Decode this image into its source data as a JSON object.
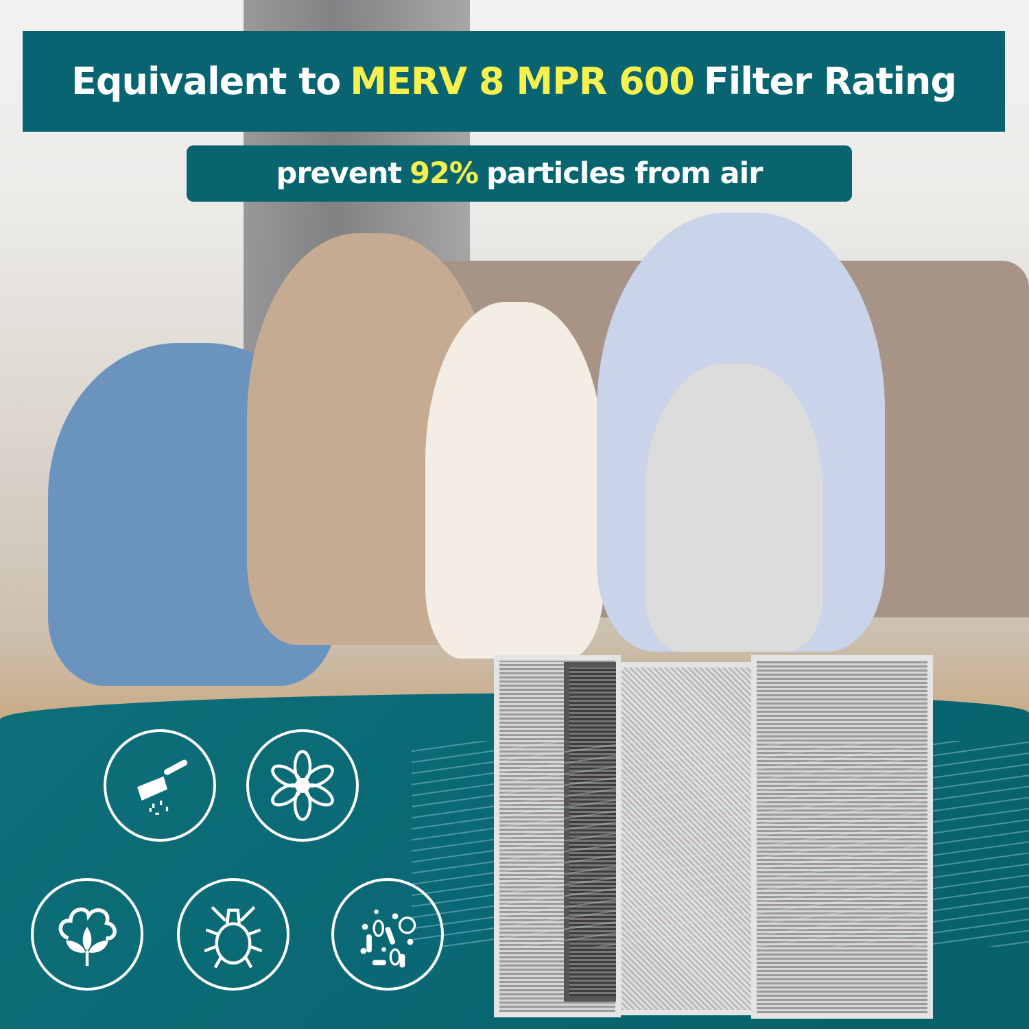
{
  "headline": {
    "prefix": "Equivalent to",
    "highlight": "MERV 8 MPR 600",
    "suffix": "Filter Rating"
  },
  "subheadline": {
    "prefix": "prevent",
    "highlight": "92%",
    "suffix": "particles from air"
  },
  "colors": {
    "teal": "#076470",
    "highlight": "#f7f14f",
    "text": "#ffffff"
  },
  "icons": [
    "dust-icon",
    "pollen-flower-icon",
    "lint-cotton-icon",
    "dust-mite-icon",
    "bacteria-icon"
  ]
}
